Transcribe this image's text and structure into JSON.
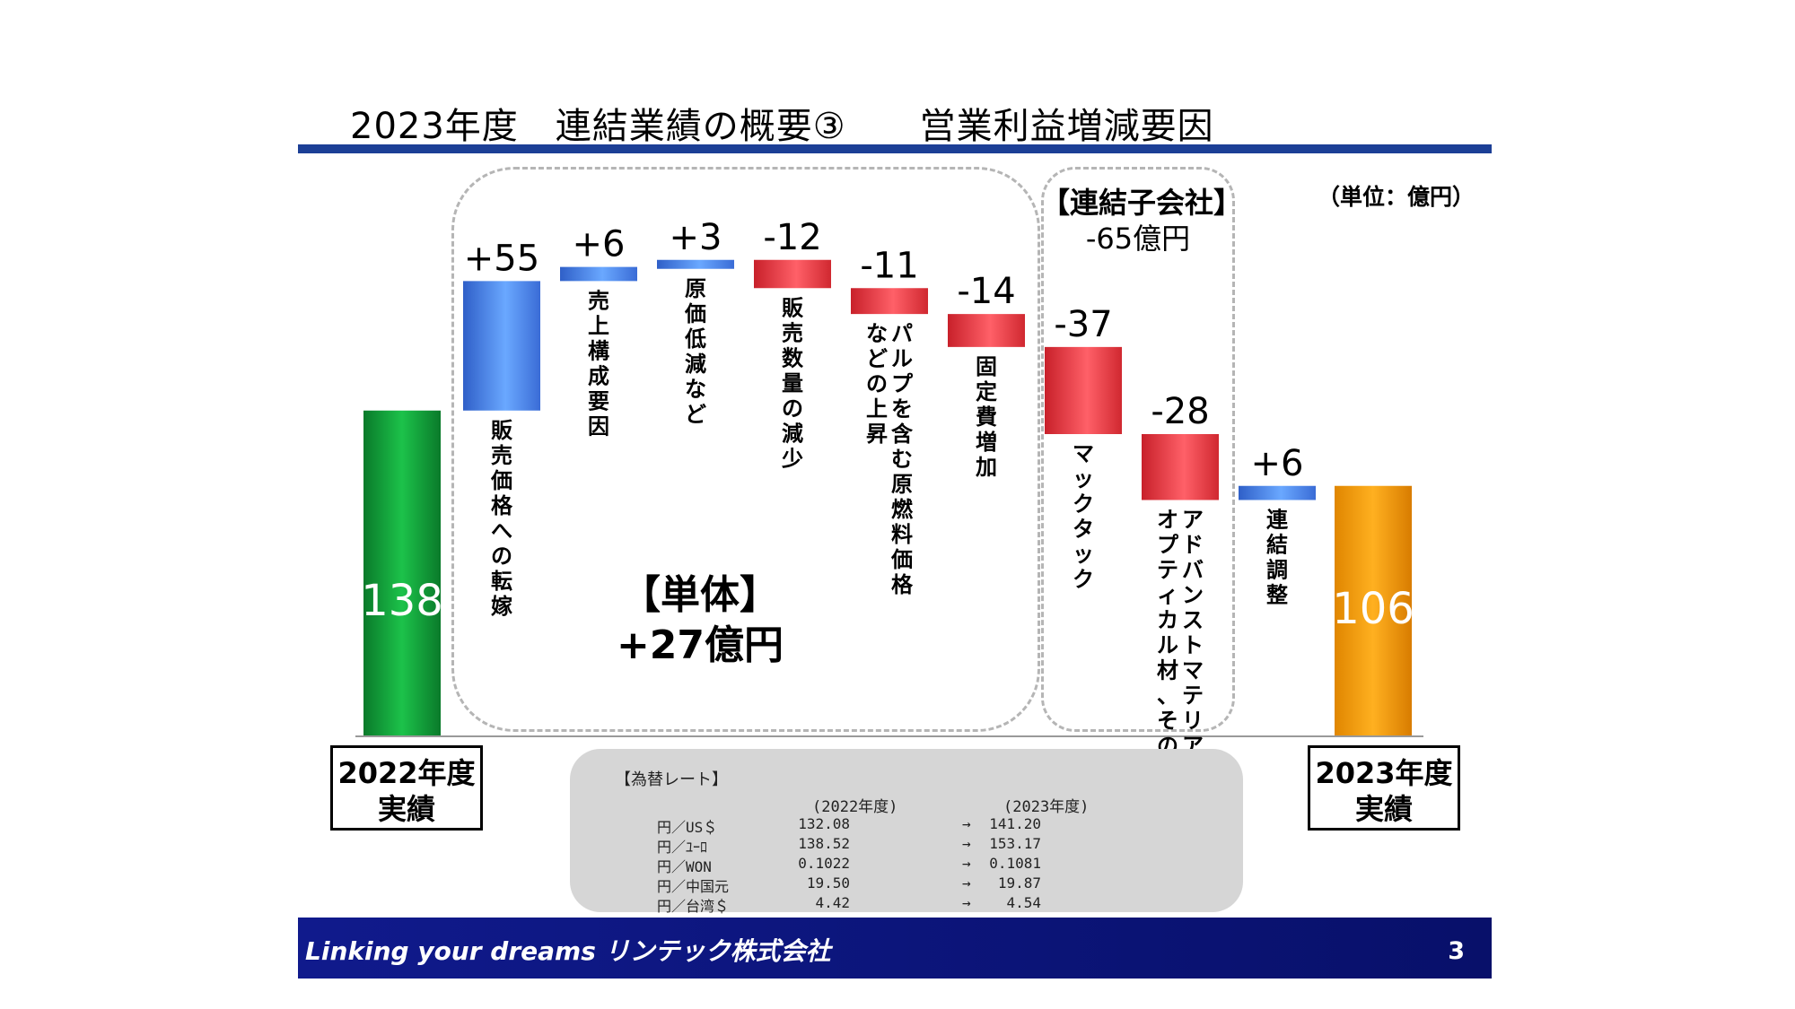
{
  "title": "2023年度　連結業績の概要③　　営業利益増減要因",
  "unit_note": "（単位：億円）",
  "groups": {
    "solo": {
      "label_line1": "【単体】",
      "label_line2": "+27億円"
    },
    "subsidiaries": {
      "label_line1": "【連結子会社】",
      "label_line2": "-65億円"
    }
  },
  "chart_data": {
    "type": "bar",
    "subtype": "waterfall",
    "title": "営業利益増減要因",
    "unit": "億円",
    "ylim": [
      0,
      209
    ],
    "start": {
      "label": "138",
      "value": 138
    },
    "end": {
      "label": "106",
      "value": 106
    },
    "steps": [
      {
        "label": "+55",
        "value": 55,
        "category": "販売価格への転嫁"
      },
      {
        "label": "+6",
        "value": 6,
        "category": "売上構成要因"
      },
      {
        "label": "+3",
        "value": 3,
        "category": "原価低減など"
      },
      {
        "label": "-12",
        "value": -12,
        "category": "販売数量の減少"
      },
      {
        "label": "-11",
        "value": -11,
        "category_line1": "パルプを含む原燃料価格",
        "category_line2": "などの上昇"
      },
      {
        "label": "-14",
        "value": -14,
        "category": "固定費増加"
      },
      {
        "label": "-37",
        "value": -37,
        "category": "マックタック"
      },
      {
        "label": "-28",
        "value": -28,
        "category_line1": "アドバンストマテリアルズ、",
        "category_line2": "オプティカル材、その他子会社"
      },
      {
        "label": "+6",
        "value": 6,
        "category": "連結調整"
      }
    ],
    "colors": {
      "start": "#12a23a",
      "end": "#f39c00",
      "increase": "#4f86e8",
      "decrease": "#e0343d"
    }
  },
  "year_boxes": {
    "start": {
      "line1": "2022年度",
      "line2": "実績"
    },
    "end": {
      "line1": "2023年度",
      "line2": "実績"
    }
  },
  "fx_rates": {
    "title": "【為替レート】",
    "col_a": "(2022年度)",
    "col_b": "(2023年度)",
    "arrow": "→",
    "rows": [
      {
        "label": "円／US＄",
        "a": "132.08",
        "b": "141.20"
      },
      {
        "label": "円／ﾕｰﾛ",
        "a": "138.52",
        "b": "153.17"
      },
      {
        "label": "円／WON",
        "a": "0.1022",
        "b": "0.1081"
      },
      {
        "label": "円／中国元",
        "a": "19.50",
        "b": "19.87"
      },
      {
        "label": "円／台湾＄",
        "a": "4.42",
        "b": "4.54"
      }
    ]
  },
  "footer": {
    "brand": "Linking your dreams リンテック株式会社",
    "page": "3"
  }
}
